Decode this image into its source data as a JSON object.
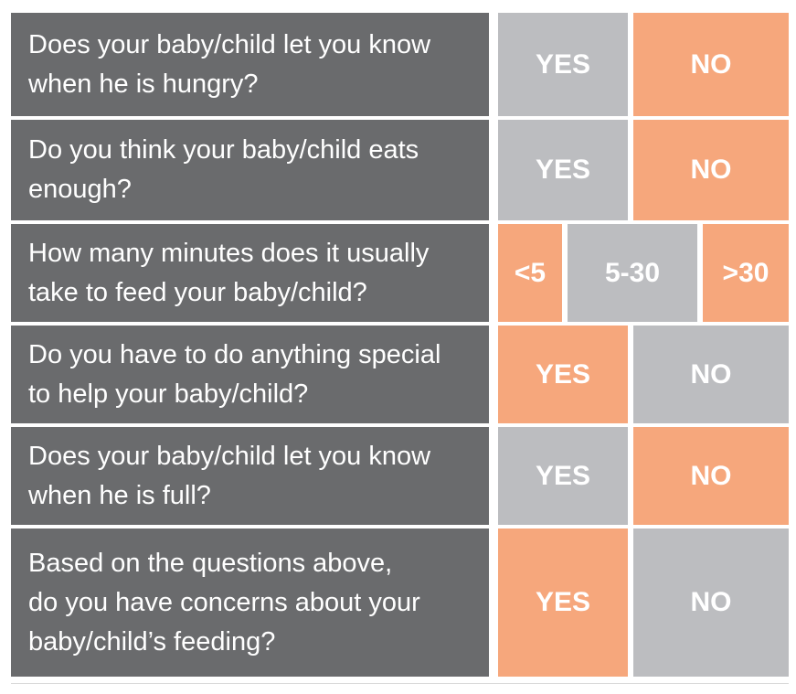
{
  "colors": {
    "page_bg": "#ffffff",
    "question_bg": "#6a6b6d",
    "gray_cell": "#bcbdc0",
    "orange_cell": "#f6a77c",
    "cell_text": "#ffffff"
  },
  "table": {
    "rows": [
      {
        "question": "Does your baby/child let you know\nwhen he is hungry?",
        "options": [
          {
            "label": "YES",
            "variant": "gray"
          },
          {
            "label": "NO",
            "variant": "orange"
          }
        ]
      },
      {
        "question": "Do you think your baby/child eats\nenough?",
        "options": [
          {
            "label": "YES",
            "variant": "gray"
          },
          {
            "label": "NO",
            "variant": "orange"
          }
        ]
      },
      {
        "question": "How many minutes does it usually\ntake to feed your baby/child?",
        "options": [
          {
            "label": "<5",
            "variant": "orange"
          },
          {
            "label": "5-30",
            "variant": "gray"
          },
          {
            "label": ">30",
            "variant": "orange"
          }
        ]
      },
      {
        "question": "Do you have to do anything special\nto help your baby/child?",
        "options": [
          {
            "label": "YES",
            "variant": "orange"
          },
          {
            "label": "NO",
            "variant": "gray"
          }
        ]
      },
      {
        "question": "Does your baby/child let you know\nwhen he is full?",
        "options": [
          {
            "label": "YES",
            "variant": "gray"
          },
          {
            "label": "NO",
            "variant": "orange"
          }
        ]
      },
      {
        "question": "Based on the questions above,\ndo you have concerns about your\nbaby/child’s feeding?",
        "options": [
          {
            "label": "YES",
            "variant": "orange"
          },
          {
            "label": "NO",
            "variant": "gray"
          }
        ]
      }
    ]
  }
}
